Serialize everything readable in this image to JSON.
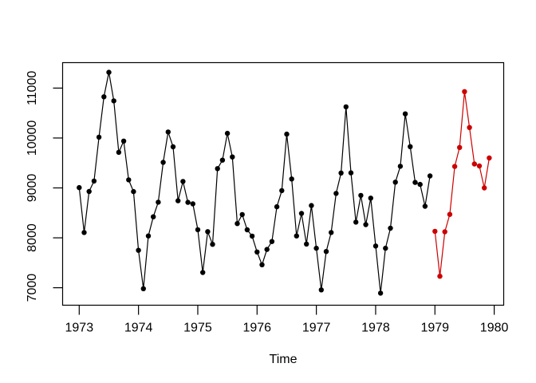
{
  "figure": {
    "kind": "r-base-graphics-plot",
    "background_color": "#FFFFFF",
    "axis_color": "#000000"
  },
  "chart_data": {
    "type": "line",
    "title": "",
    "xlabel": "Time",
    "ylabel": "",
    "x_ticks": [
      1973,
      1974,
      1975,
      1976,
      1977,
      1978,
      1979,
      1980
    ],
    "y_ticks": [
      7000,
      8000,
      9000,
      10000,
      11000
    ],
    "xlim": [
      1972.72,
      1980.16
    ],
    "ylim": [
      6650,
      11510
    ],
    "grid": false,
    "legend_position": "none",
    "marker": "filled-circle",
    "frequency": 12,
    "series": [
      {
        "name": "observed-series",
        "color": "#000000",
        "start_time": 1973.0,
        "time_step": 0.0833333,
        "values": [
          9007,
          8106,
          8928,
          9137,
          10017,
          10826,
          11317,
          10744,
          9713,
          9938,
          9161,
          8927,
          7750,
          6981,
          8038,
          8422,
          8714,
          9512,
          10120,
          9823,
          8743,
          9129,
          8710,
          8680,
          8162,
          7306,
          8124,
          7870,
          9387,
          9556,
          10093,
          9620,
          8285,
          8466,
          8160,
          8034,
          7717,
          7461,
          7767,
          7925,
          8623,
          8945,
          10078,
          9179,
          8037,
          8488,
          7874,
          8647,
          7792,
          6957,
          7726,
          8106,
          8890,
          9299,
          10625,
          9302,
          8314,
          8850,
          8265,
          8796,
          7836,
          6892,
          7791,
          8192,
          9115,
          9434,
          10484,
          9827,
          9110,
          9070,
          8633,
          9240
        ]
      },
      {
        "name": "forecast-series",
        "color": "#CC0000",
        "start_time": 1979.0,
        "time_step": 0.0833333,
        "values": [
          8130,
          7230,
          8120,
          8470,
          9430,
          9810,
          10930,
          10210,
          9480,
          9440,
          9000,
          9600
        ]
      }
    ]
  }
}
